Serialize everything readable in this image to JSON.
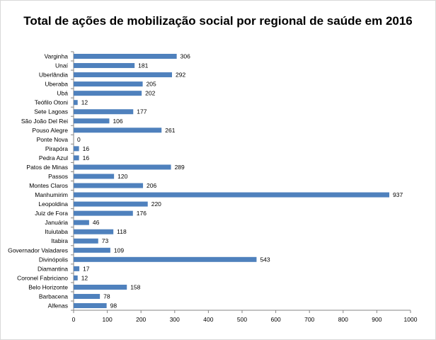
{
  "chart_data": {
    "type": "bar",
    "orientation": "horizontal",
    "title": "Total de ações de mobilização social por regional de saúde em 2016",
    "xlabel": "",
    "ylabel": "",
    "xlim": [
      0,
      1000
    ],
    "xticks": [
      0,
      100,
      200,
      300,
      400,
      500,
      600,
      700,
      800,
      900,
      1000
    ],
    "bar_color": "#4f81bd",
    "grid": false,
    "legend": "none",
    "categories": [
      "Varginha",
      "Unaí",
      "Uberlândia",
      "Uberaba",
      "Ubá",
      "Teófilo Otoni",
      "Sete Lagoas",
      "São João Del Rei",
      "Pouso Alegre",
      "Ponte Nova",
      "Pirapóra",
      "Pedra Azul",
      "Patos de Minas",
      "Passos",
      "Montes Claros",
      "Manhumirim",
      "Leopoldina",
      "Juiz de Fora",
      "Januária",
      "Ituiutaba",
      "Itabira",
      "Governador Valadares",
      "Divinópolis",
      "Diamantina",
      "Coronel Fabriciano",
      "Belo Horizonte",
      "Barbacena",
      "Alfenas"
    ],
    "values": [
      306,
      181,
      292,
      205,
      202,
      12,
      177,
      106,
      261,
      0,
      16,
      16,
      289,
      120,
      206,
      937,
      220,
      176,
      46,
      118,
      73,
      109,
      543,
      17,
      12,
      158,
      78,
      98
    ]
  }
}
